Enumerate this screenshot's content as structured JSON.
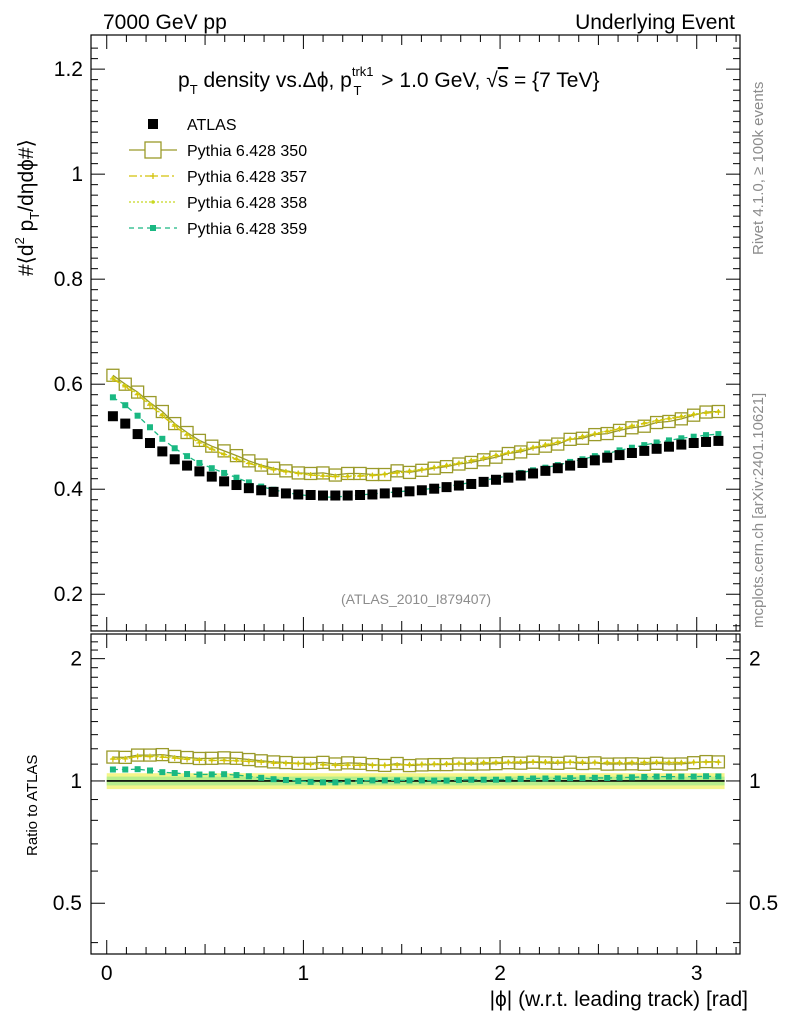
{
  "header": {
    "left_label": "7000 GeV pp",
    "right_label": "Underlying Event"
  },
  "side_labels": {
    "rivet": "Rivet 4.1.0, ≥ 100k events",
    "mcplots": "mcplots.cern.ch [arXiv:2401.10621]"
  },
  "analysis_id": "(ATLAS_2010_I879407)",
  "colors": {
    "atlas": "#000000",
    "py350": "#9a9a2a",
    "py357": "#d4c20a",
    "py358": "#c8d820",
    "py359": "#1ab882",
    "band_outer": "#f5f58a",
    "band_inner": "#b8ee8c"
  },
  "chart_data": [
    {
      "type": "scatter",
      "panel": "main",
      "title": {
        "p1": "p",
        "p1_sub": "T",
        "p2": " density vs.Δϕ, p",
        "p2_sup": "trk1",
        "p2_sub": "T",
        "p3": " > 1.0 GeV, ",
        "p3_root": "s",
        "p4": " = {7 TeV}"
      },
      "ylabel": {
        "a": "#⟨d",
        "a_sup": "2",
        "b": " p",
        "b_sub": "T",
        "c": "/dηdϕ#⟩"
      },
      "xlim": [
        -0.08,
        3.22
      ],
      "ylim": [
        0.13,
        1.265
      ],
      "yticks": [
        0.2,
        0.4,
        0.6,
        0.8,
        1,
        1.2
      ],
      "ytick_labels": [
        "0.2",
        "0.4",
        "0.6",
        "0.8",
        "1",
        "1.2"
      ],
      "x": [
        0.0314,
        0.0942,
        0.1571,
        0.2199,
        0.2827,
        0.3456,
        0.4084,
        0.4712,
        0.5341,
        0.5969,
        0.6597,
        0.7226,
        0.7854,
        0.8482,
        0.9111,
        0.9739,
        1.0367,
        1.0996,
        1.1624,
        1.2252,
        1.2881,
        1.3509,
        1.4137,
        1.4765,
        1.5394,
        1.6022,
        1.665,
        1.7279,
        1.7907,
        1.8535,
        1.9164,
        1.9792,
        2.042,
        2.1049,
        2.1677,
        2.2305,
        2.2934,
        2.3562,
        2.419,
        2.4819,
        2.5447,
        2.6075,
        2.6704,
        2.7332,
        2.796,
        2.8588,
        2.9217,
        2.9845,
        3.0473,
        3.1102
      ],
      "legend": [
        "ATLAS",
        "Pythia 6.428 350",
        "Pythia 6.428 357",
        "Pythia 6.428 358",
        "Pythia 6.428 359"
      ],
      "series": [
        {
          "name": "ATLAS",
          "values": [
            0.539,
            0.525,
            0.505,
            0.488,
            0.472,
            0.457,
            0.445,
            0.434,
            0.424,
            0.415,
            0.408,
            0.402,
            0.398,
            0.395,
            0.392,
            0.39,
            0.389,
            0.388,
            0.388,
            0.388,
            0.389,
            0.39,
            0.392,
            0.394,
            0.396,
            0.398,
            0.401,
            0.404,
            0.407,
            0.41,
            0.414,
            0.418,
            0.422,
            0.426,
            0.43,
            0.435,
            0.44,
            0.445,
            0.45,
            0.455,
            0.46,
            0.465,
            0.469,
            0.473,
            0.477,
            0.481,
            0.485,
            0.488,
            0.49,
            0.492
          ]
        },
        {
          "name": "Pythia 6.428 350",
          "values": [
            0.617,
            0.6,
            0.585,
            0.565,
            0.548,
            0.525,
            0.508,
            0.493,
            0.482,
            0.473,
            0.464,
            0.454,
            0.446,
            0.44,
            0.435,
            0.431,
            0.43,
            0.431,
            0.427,
            0.43,
            0.43,
            0.428,
            0.428,
            0.435,
            0.432,
            0.436,
            0.44,
            0.443,
            0.448,
            0.451,
            0.456,
            0.461,
            0.468,
            0.471,
            0.478,
            0.482,
            0.486,
            0.495,
            0.497,
            0.504,
            0.506,
            0.512,
            0.517,
            0.52,
            0.527,
            0.529,
            0.534,
            0.541,
            0.547,
            0.548
          ]
        },
        {
          "name": "Pythia 6.428 357",
          "values": [
            0.61,
            0.595,
            0.58,
            0.56,
            0.54,
            0.52,
            0.503,
            0.488,
            0.476,
            0.466,
            0.457,
            0.449,
            0.443,
            0.437,
            0.433,
            0.43,
            0.427,
            0.425,
            0.424,
            0.424,
            0.425,
            0.426,
            0.428,
            0.431,
            0.434,
            0.437,
            0.441,
            0.445,
            0.449,
            0.454,
            0.459,
            0.464,
            0.469,
            0.474,
            0.479,
            0.484,
            0.489,
            0.495,
            0.5,
            0.505,
            0.51,
            0.515,
            0.52,
            0.525,
            0.53,
            0.534,
            0.538,
            0.542,
            0.545,
            0.547
          ]
        },
        {
          "name": "Pythia 6.428 358",
          "values": [
            0.612,
            0.597,
            0.582,
            0.562,
            0.542,
            0.522,
            0.505,
            0.49,
            0.477,
            0.467,
            0.458,
            0.45,
            0.444,
            0.438,
            0.434,
            0.431,
            0.428,
            0.426,
            0.425,
            0.425,
            0.426,
            0.427,
            0.429,
            0.432,
            0.435,
            0.438,
            0.442,
            0.446,
            0.45,
            0.455,
            0.46,
            0.465,
            0.47,
            0.475,
            0.48,
            0.485,
            0.49,
            0.496,
            0.501,
            0.506,
            0.511,
            0.516,
            0.521,
            0.526,
            0.531,
            0.535,
            0.539,
            0.543,
            0.546,
            0.548
          ]
        },
        {
          "name": "Pythia 6.428 359",
          "values": [
            0.575,
            0.56,
            0.54,
            0.518,
            0.496,
            0.478,
            0.463,
            0.45,
            0.44,
            0.431,
            0.422,
            0.413,
            0.405,
            0.399,
            0.394,
            0.39,
            0.387,
            0.385,
            0.385,
            0.387,
            0.389,
            0.391,
            0.393,
            0.395,
            0.397,
            0.399,
            0.402,
            0.405,
            0.409,
            0.413,
            0.417,
            0.421,
            0.426,
            0.431,
            0.436,
            0.441,
            0.446,
            0.452,
            0.457,
            0.463,
            0.468,
            0.474,
            0.479,
            0.484,
            0.489,
            0.493,
            0.497,
            0.5,
            0.503,
            0.505
          ]
        }
      ]
    },
    {
      "type": "scatter",
      "panel": "ratio",
      "ylabel": "Ratio to ATLAS",
      "xlabel": "|ϕ| (w.r.t. leading track) [rad]",
      "xlim": [
        -0.08,
        3.22
      ],
      "ylim": [
        0.375,
        2.3
      ],
      "yticks": [
        0.5,
        1,
        2
      ],
      "ytick_labels": [
        "0.5",
        "1",
        "2"
      ],
      "xticks": [
        0,
        1,
        2,
        3
      ],
      "xtick_labels": [
        "0",
        "1",
        "2",
        "3"
      ],
      "reference": 1.0,
      "band_outer": [
        0.955,
        1.045
      ],
      "band_inner": [
        0.975,
        1.025
      ],
      "series": [
        {
          "name": "Pythia 6.428 350",
          "values": [
            1.145,
            1.143,
            1.158,
            1.158,
            1.161,
            1.149,
            1.142,
            1.136,
            1.137,
            1.14,
            1.137,
            1.129,
            1.121,
            1.114,
            1.11,
            1.105,
            1.105,
            1.111,
            1.101,
            1.108,
            1.105,
            1.097,
            1.092,
            1.104,
            1.091,
            1.095,
            1.097,
            1.097,
            1.101,
            1.1,
            1.101,
            1.103,
            1.109,
            1.106,
            1.112,
            1.108,
            1.105,
            1.112,
            1.104,
            1.108,
            1.1,
            1.101,
            1.102,
            1.099,
            1.105,
            1.1,
            1.101,
            1.109,
            1.116,
            1.114
          ]
        },
        {
          "name": "Pythia 6.428 357",
          "values": [
            1.132,
            1.133,
            1.149,
            1.148,
            1.144,
            1.138,
            1.13,
            1.124,
            1.123,
            1.123,
            1.12,
            1.117,
            1.113,
            1.106,
            1.105,
            1.103,
            1.098,
            1.095,
            1.093,
            1.093,
            1.093,
            1.092,
            1.092,
            1.094,
            1.096,
            1.098,
            1.1,
            1.101,
            1.103,
            1.107,
            1.109,
            1.11,
            1.111,
            1.113,
            1.114,
            1.113,
            1.111,
            1.112,
            1.111,
            1.11,
            1.109,
            1.108,
            1.109,
            1.11,
            1.111,
            1.11,
            1.109,
            1.111,
            1.112,
            1.112
          ]
        },
        {
          "name": "Pythia 6.428 358",
          "values": [
            1.135,
            1.137,
            1.152,
            1.152,
            1.148,
            1.142,
            1.135,
            1.129,
            1.125,
            1.125,
            1.123,
            1.119,
            1.116,
            1.109,
            1.107,
            1.105,
            1.1,
            1.098,
            1.095,
            1.095,
            1.095,
            1.095,
            1.094,
            1.096,
            1.098,
            1.101,
            1.102,
            1.104,
            1.106,
            1.11,
            1.111,
            1.112,
            1.114,
            1.115,
            1.116,
            1.115,
            1.114,
            1.115,
            1.113,
            1.112,
            1.111,
            1.11,
            1.111,
            1.112,
            1.113,
            1.112,
            1.111,
            1.113,
            1.114,
            1.114
          ]
        },
        {
          "name": "Pythia 6.428 359",
          "values": [
            1.067,
            1.067,
            1.069,
            1.061,
            1.051,
            1.046,
            1.04,
            1.037,
            1.038,
            1.039,
            1.034,
            1.027,
            1.018,
            1.01,
            1.005,
            1,
            0.995,
            0.992,
            0.992,
            0.997,
            1,
            1.003,
            1.003,
            1.003,
            1.003,
            1.003,
            1.002,
            1.002,
            1.005,
            1.007,
            1.007,
            1.007,
            1.009,
            1.012,
            1.014,
            1.014,
            1.014,
            1.016,
            1.016,
            1.018,
            1.017,
            1.019,
            1.021,
            1.023,
            1.025,
            1.025,
            1.025,
            1.025,
            1.027,
            1.026
          ]
        }
      ]
    }
  ]
}
